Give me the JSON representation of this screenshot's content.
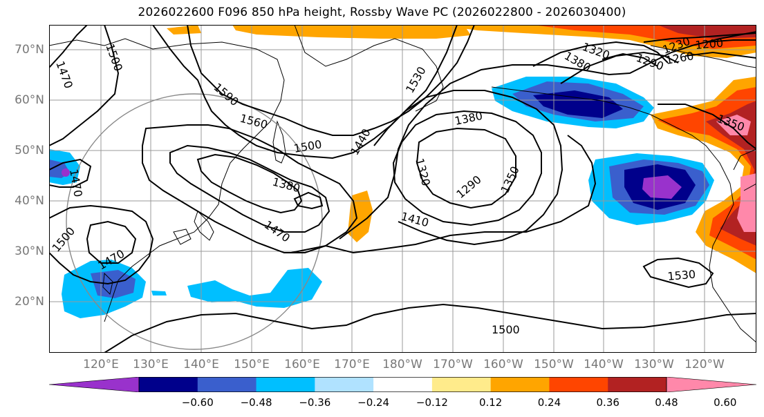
{
  "title": "2026022600 F096 850 hPa height, Rossby Wave PC (2026022800 - 2026030400)",
  "lat_labels": [
    "70°N",
    "60°N",
    "50°N",
    "40°N",
    "30°N",
    "20°N"
  ],
  "lon_labels": [
    "120°E",
    "130°E",
    "140°E",
    "150°E",
    "160°E",
    "170°E",
    "180°W",
    "170°W",
    "160°W",
    "150°W",
    "140°W",
    "130°W",
    "120°W"
  ],
  "colorbar": {
    "colors": [
      "#9932cc",
      "#00008b",
      "#3a5fcd",
      "#00bfff",
      "#b0e2ff",
      "#ffffff",
      "#ffeb8b",
      "#ffa500",
      "#ff4500",
      "#b22222",
      "#ff88aa"
    ],
    "ticks": [
      "−0.60",
      "−0.48",
      "−0.36",
      "−0.24",
      "−0.12",
      "0.12",
      "0.24",
      "0.36",
      "0.48",
      "0.60"
    ]
  },
  "contour_labels": [
    "1470",
    "1500",
    "1590",
    "1560",
    "1500",
    "1470",
    "1380",
    "1530",
    "1440",
    "1380",
    "1320",
    "1290",
    "1350",
    "1410",
    "1470",
    "1320",
    "1380",
    "1230",
    "1290",
    "1260",
    "1200",
    "1350",
    "1500",
    "1470",
    "1530",
    "1500"
  ]
}
